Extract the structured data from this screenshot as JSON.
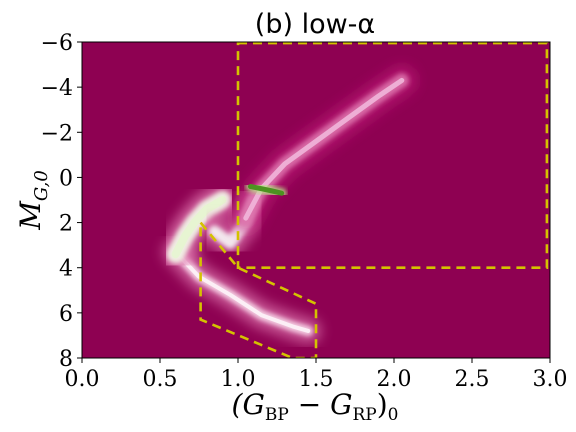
{
  "chart_data": {
    "type": "heatmap",
    "title": "(b) low-α",
    "xlabel": "(G_BP − G_RP)_0",
    "ylabel": "M_G,0",
    "xlim": [
      0.0,
      3.0
    ],
    "ylim": [
      8,
      -6
    ],
    "x_ticks": [
      "0.0",
      "0.5",
      "1.0",
      "1.5",
      "2.0",
      "2.5",
      "3.0"
    ],
    "y_ticks": [
      "−6",
      "−4",
      "−2",
      "0",
      "2",
      "4",
      "6",
      "8"
    ],
    "x_tick_values": [
      0.0,
      0.5,
      1.0,
      1.5,
      2.0,
      2.5,
      3.0
    ],
    "y_tick_values": [
      -6,
      -4,
      -2,
      0,
      2,
      4,
      6,
      8
    ],
    "colormap": "PiYG",
    "background_color": "#8e0152",
    "selection_color": "#d4c200",
    "density_features": [
      {
        "name": "main sequence",
        "points": [
          [
            0.6,
            3.3
          ],
          [
            0.75,
            4.4
          ],
          [
            0.95,
            5.2
          ],
          [
            1.15,
            6.1
          ],
          [
            1.35,
            6.6
          ],
          [
            1.45,
            6.8
          ]
        ]
      },
      {
        "name": "turnoff",
        "points": [
          [
            0.6,
            3.4
          ],
          [
            0.66,
            2.6
          ],
          [
            0.72,
            2.0
          ],
          [
            0.8,
            1.4
          ],
          [
            0.9,
            1.0
          ]
        ]
      },
      {
        "name": "subgiant branch",
        "points": [
          [
            0.85,
            2.4
          ],
          [
            0.95,
            2.9
          ],
          [
            1.05,
            2.0
          ],
          [
            1.1,
            1.0
          ]
        ]
      },
      {
        "name": "red giant branch",
        "points": [
          [
            1.05,
            1.8
          ],
          [
            1.15,
            0.5
          ],
          [
            1.3,
            -0.6
          ],
          [
            1.5,
            -1.6
          ],
          [
            1.7,
            -2.6
          ],
          [
            1.9,
            -3.6
          ],
          [
            2.05,
            -4.3
          ]
        ]
      },
      {
        "name": "red clump",
        "points": [
          [
            1.08,
            0.4
          ],
          [
            1.15,
            0.5
          ],
          [
            1.22,
            0.6
          ],
          [
            1.28,
            0.7
          ]
        ]
      }
    ],
    "regions": [
      {
        "name": "giant selection box",
        "points": [
          [
            1.0,
            -5.95
          ],
          [
            2.98,
            -5.95
          ],
          [
            2.98,
            4.0
          ],
          [
            1.0,
            4.0
          ]
        ]
      },
      {
        "name": "dwarf selection parallelogram",
        "points": [
          [
            0.76,
            2.0
          ],
          [
            1.0,
            4.0
          ],
          [
            1.5,
            5.6
          ],
          [
            1.5,
            8.0
          ],
          [
            1.35,
            8.0
          ],
          [
            0.76,
            6.3
          ]
        ]
      }
    ]
  }
}
